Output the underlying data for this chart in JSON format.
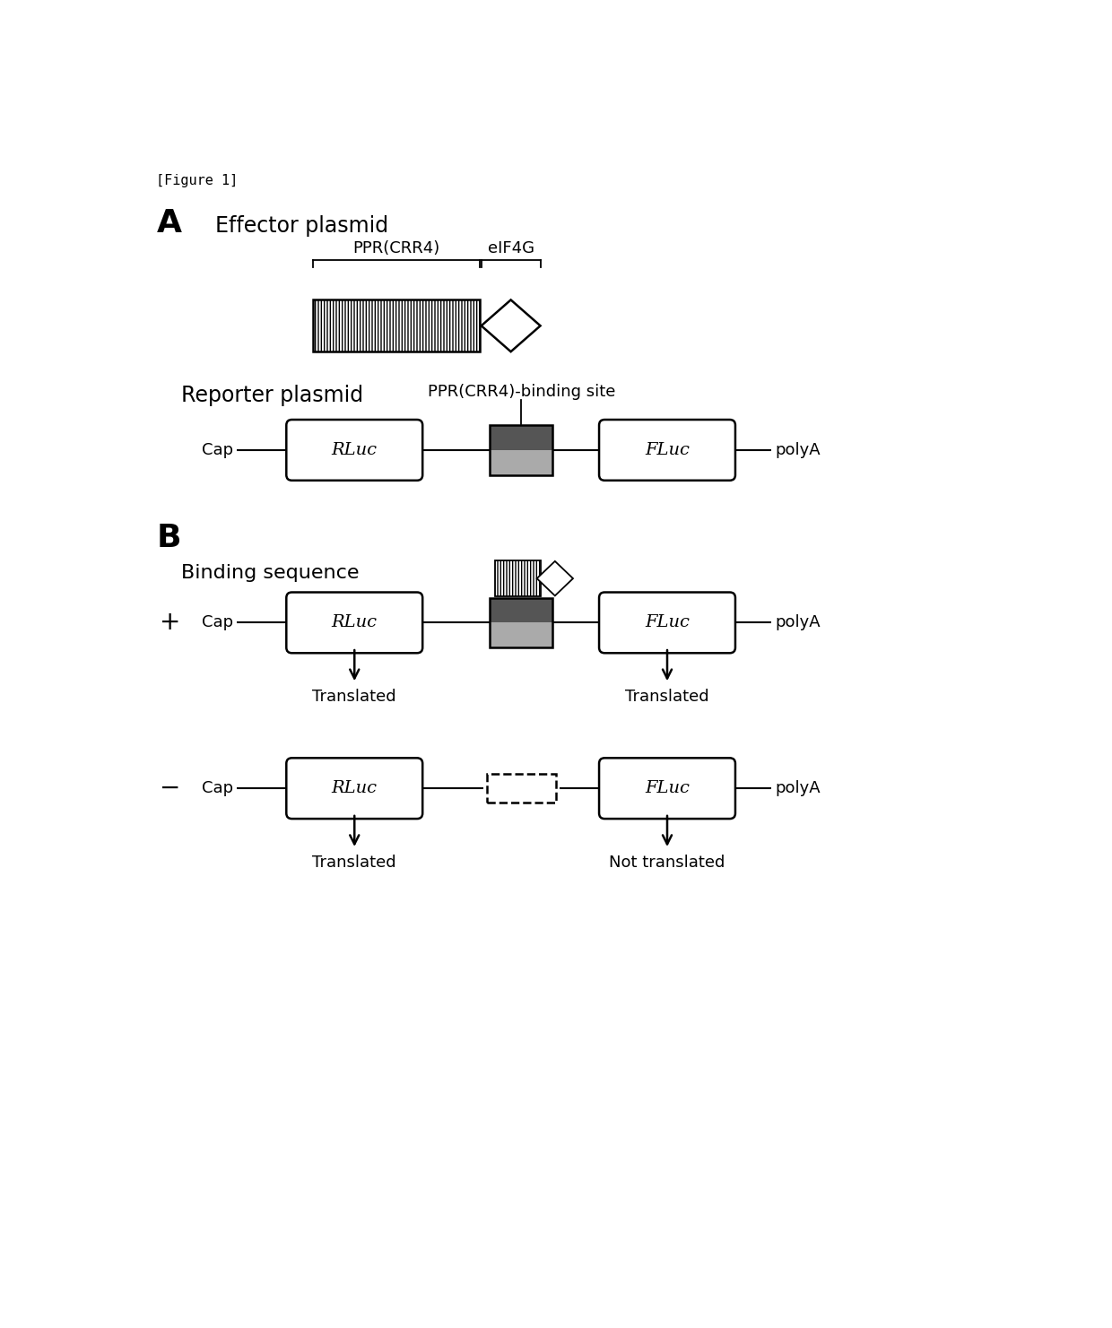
{
  "fig_width": 12.4,
  "fig_height": 14.81,
  "bg_color": "#ffffff",
  "figure_label": "[Figure 1]",
  "section_A_label": "A",
  "section_A_title": "Effector plasmid",
  "ppr_label": "PPR(CRR4)",
  "eif_label": "eIF4G",
  "reporter_title": "Reporter plasmid",
  "ppr_binding_label": "PPR(CRR4)-binding site",
  "cap_label": "Cap",
  "polyA_label": "polyA",
  "rluc_label": "RLuc",
  "fluc_label": "FLuc",
  "section_B_label": "B",
  "binding_seq_label": "Binding sequence",
  "plus_label": "+",
  "minus_label": "−",
  "translated_label": "Translated",
  "not_translated_label": "Not translated",
  "box_color_dark": "#555555",
  "box_color_light": "#aaaaaa"
}
